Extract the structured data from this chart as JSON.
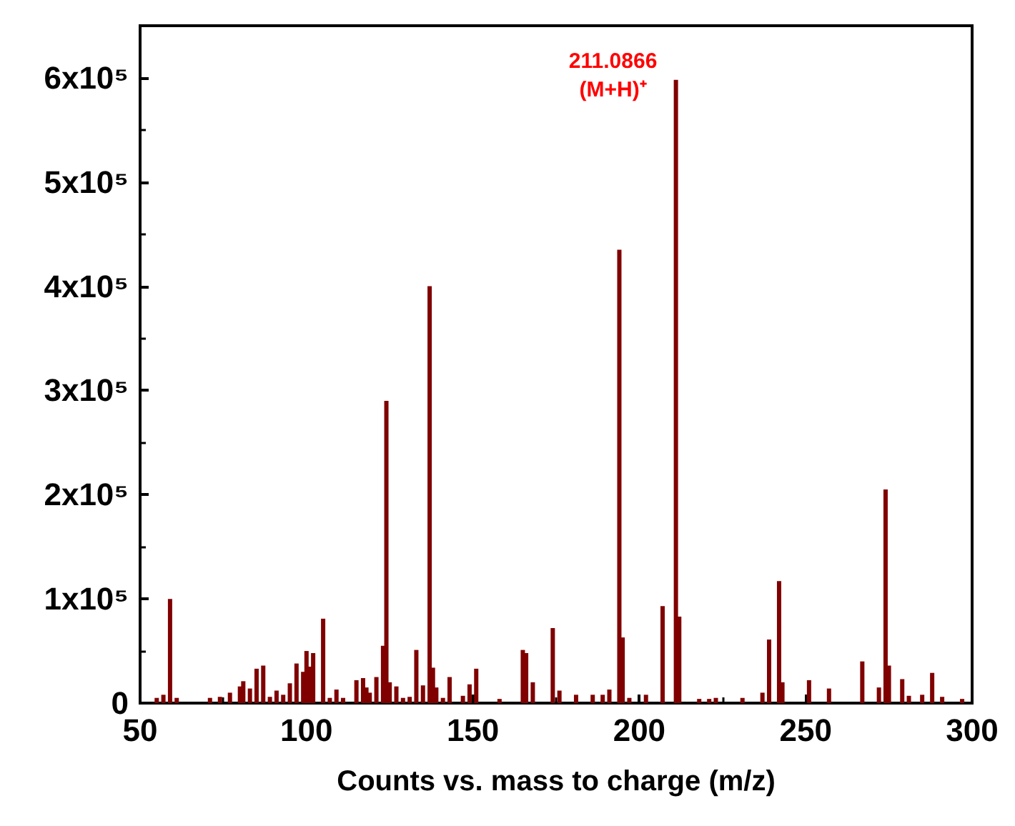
{
  "chart_data": {
    "type": "bar",
    "xlabel": "Counts vs. mass to charge (m/z)",
    "color": "#800000",
    "x": [
      55,
      57,
      59,
      61,
      71,
      74,
      77,
      80,
      81,
      83,
      85,
      87,
      89,
      91,
      93,
      95,
      97,
      99,
      100,
      101,
      102,
      105,
      107,
      109,
      111,
      115,
      117,
      118,
      119,
      121,
      123,
      124,
      125,
      127,
      129,
      131,
      133,
      135,
      137,
      138,
      139,
      141,
      143,
      147,
      149,
      151,
      158,
      165,
      166,
      168,
      174,
      176,
      181,
      186,
      189,
      191,
      194,
      195,
      197,
      202,
      207,
      211,
      212,
      218,
      221,
      223,
      231,
      237,
      239,
      242,
      243,
      251,
      257,
      267,
      272,
      274,
      275,
      279,
      281,
      285,
      288,
      291,
      297
    ],
    "values": [
      5000,
      8000,
      100000,
      5000,
      5000,
      6000,
      10000,
      16000,
      21000,
      14000,
      33000,
      36000,
      6000,
      12000,
      8000,
      19000,
      38000,
      30000,
      50000,
      35000,
      48000,
      81000,
      5000,
      13000,
      5000,
      22000,
      24000,
      15000,
      10000,
      25000,
      55000,
      290000,
      20000,
      16000,
      5000,
      6000,
      51000,
      17000,
      400000,
      34000,
      15000,
      5000,
      25000,
      7000,
      18000,
      33000,
      4000,
      51000,
      48000,
      20000,
      72000,
      12000,
      8000,
      8000,
      8000,
      13000,
      435000,
      63000,
      5000,
      8000,
      93000,
      598000,
      83000,
      4000,
      4000,
      5000,
      5000,
      10000,
      61000,
      117000,
      20000,
      22000,
      14000,
      40000,
      15000,
      205000,
      36000,
      23000,
      7000,
      8000,
      29000,
      6000,
      4000
    ],
    "xlim": [
      50,
      300
    ],
    "xticks": [
      50,
      100,
      150,
      200,
      250,
      300
    ],
    "ylim": [
      0,
      650000
    ],
    "yticks": [
      0,
      {
        "value": 100000,
        "label": "1x10⁵"
      },
      {
        "value": 200000,
        "label": "2x10⁵"
      },
      {
        "value": 300000,
        "label": "3x10⁵"
      },
      {
        "value": 400000,
        "label": "4x10⁵"
      },
      {
        "value": 500000,
        "label": "5x10⁵"
      },
      {
        "value": 600000,
        "label": "6x10⁵"
      }
    ],
    "annotations": [
      {
        "text": "211.0866\n(M+H)⁺",
        "x": 211,
        "y": 598000
      }
    ],
    "grid": false
  }
}
